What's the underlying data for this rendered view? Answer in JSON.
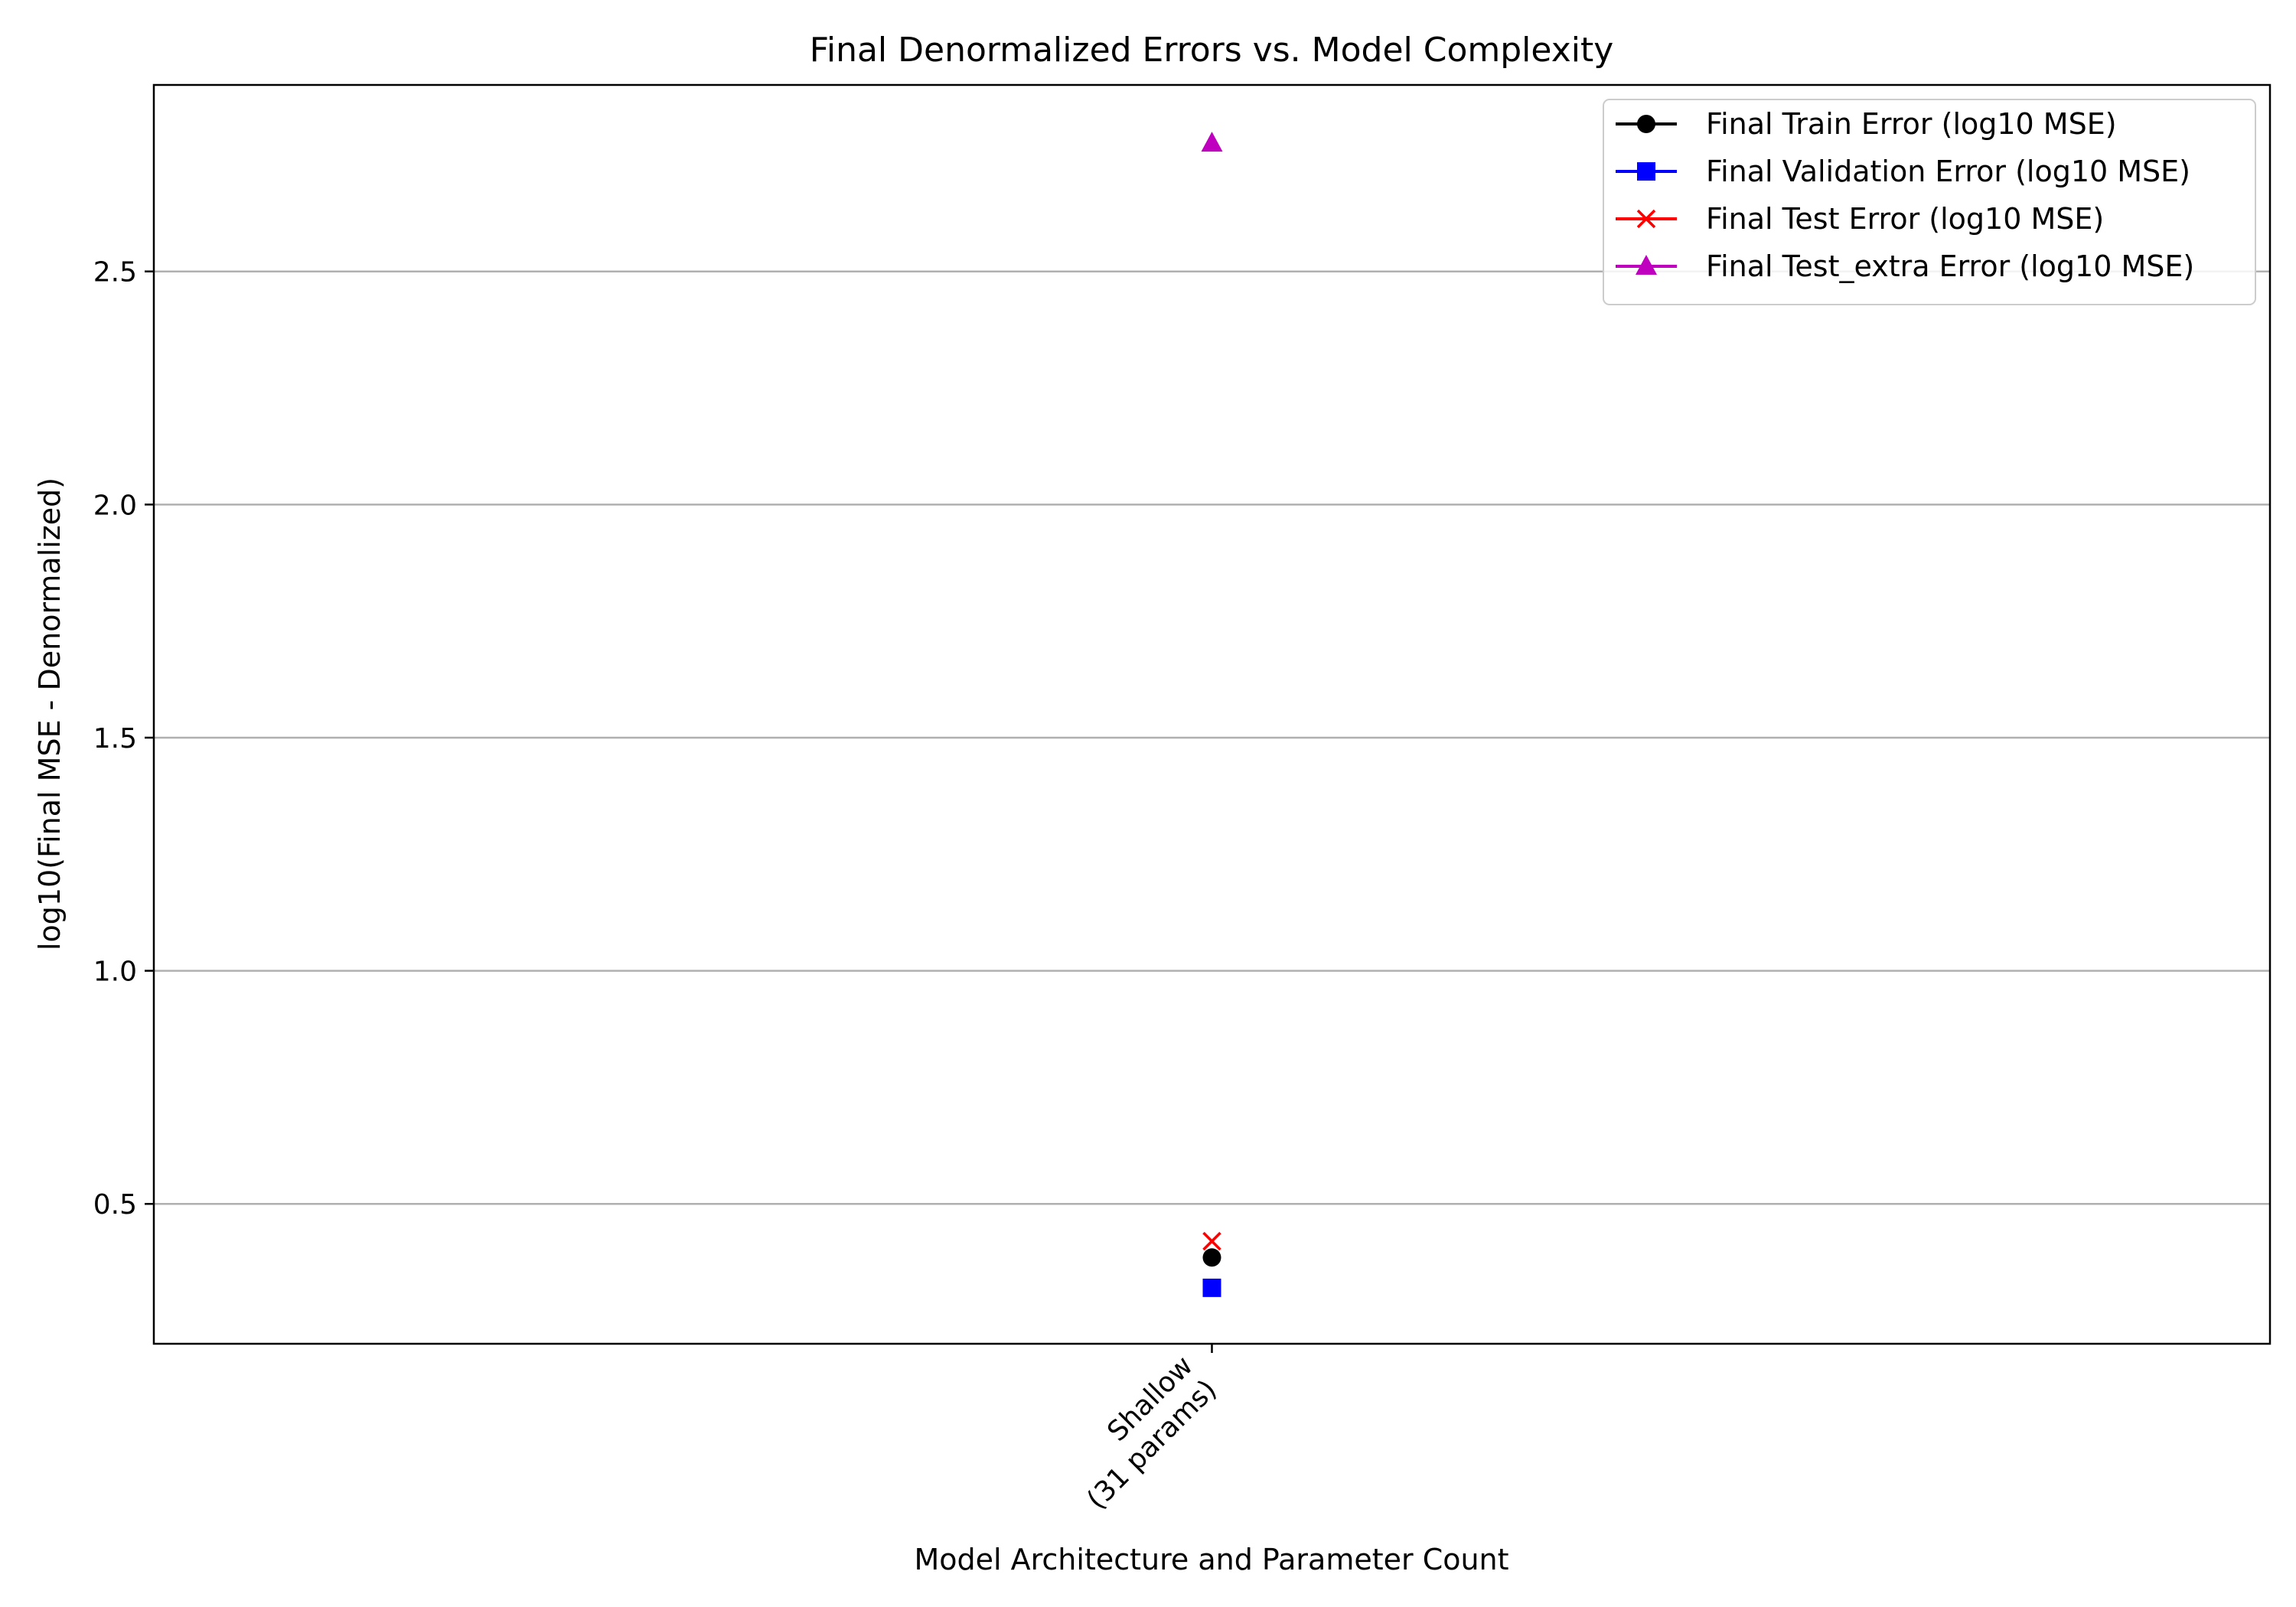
{
  "chart_data": {
    "type": "scatter",
    "title": "Final Denormalized Errors vs. Model Complexity",
    "xlabel": "Model Architecture and Parameter Count",
    "ylabel": "log10(Final MSE - Denormalized)",
    "categories": [
      "Shallow\n(31 params)"
    ],
    "category_lines": [
      [
        "Shallow",
        "(31 params)"
      ]
    ],
    "ylim": [
      0.2,
      2.9
    ],
    "yticks": [
      0.5,
      1.0,
      1.5,
      2.0,
      2.5
    ],
    "ytick_labels": [
      "0.5",
      "1.0",
      "1.5",
      "2.0",
      "2.5"
    ],
    "grid": "y",
    "legend_position": "upper right",
    "series": [
      {
        "name": "Final Train Error (log10 MSE)",
        "values": [
          0.385
        ],
        "color": "#000000",
        "marker": "circle"
      },
      {
        "name": "Final Validation Error (log10 MSE)",
        "values": [
          0.32
        ],
        "color": "#0000ff",
        "marker": "square"
      },
      {
        "name": "Final Test Error (log10 MSE)",
        "values": [
          0.42
        ],
        "color": "#ff0000",
        "marker": "x"
      },
      {
        "name": "Final Test_extra Error (log10 MSE)",
        "values": [
          2.775
        ],
        "color": "#bf00bf",
        "marker": "triangle"
      }
    ]
  }
}
